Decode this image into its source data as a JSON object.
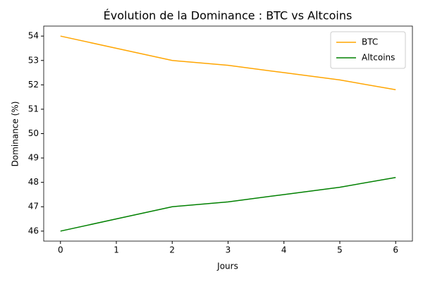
{
  "chart_data": {
    "type": "line",
    "title": "Évolution de la Dominance : BTC vs Altcoins",
    "x_label": "Jours",
    "y_label": "Dominance (%)",
    "x": [
      0,
      1,
      2,
      3,
      4,
      5,
      6
    ],
    "series": [
      {
        "name": "BTC",
        "color": "#ffa500",
        "values": [
          54,
          53.5,
          53,
          52.8,
          52.5,
          52.2,
          51.8
        ]
      },
      {
        "name": "Altcoins",
        "color": "#008000",
        "values": [
          46,
          46.5,
          47,
          47.2,
          47.5,
          47.8,
          48.2
        ]
      }
    ],
    "xlim": [
      -0.3,
      6.3
    ],
    "xticks": [
      0,
      1,
      2,
      3,
      4,
      5,
      6
    ],
    "ylim": [
      45.59,
      54.41
    ],
    "yticks": [
      46,
      47,
      48,
      49,
      50,
      51,
      52,
      53,
      54
    ],
    "legend": "upper right"
  }
}
